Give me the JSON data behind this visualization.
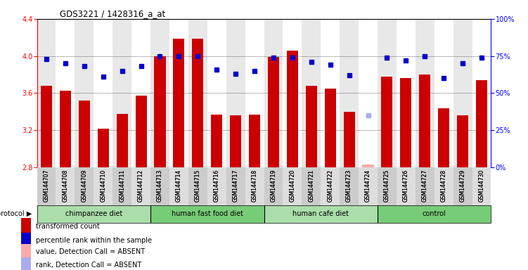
{
  "title": "GDS3221 / 1428316_a_at",
  "samples": [
    "GSM144707",
    "GSM144708",
    "GSM144709",
    "GSM144710",
    "GSM144711",
    "GSM144712",
    "GSM144713",
    "GSM144714",
    "GSM144715",
    "GSM144716",
    "GSM144717",
    "GSM144718",
    "GSM144719",
    "GSM144720",
    "GSM144721",
    "GSM144722",
    "GSM144723",
    "GSM144724",
    "GSM144725",
    "GSM144726",
    "GSM144727",
    "GSM144728",
    "GSM144729",
    "GSM144730"
  ],
  "bar_values": [
    3.68,
    3.63,
    3.52,
    3.22,
    3.38,
    3.57,
    4.0,
    4.19,
    4.19,
    3.37,
    3.36,
    3.37,
    3.99,
    4.06,
    3.68,
    3.65,
    3.4,
    2.83,
    3.78,
    3.76,
    3.8,
    3.44,
    3.36,
    3.74
  ],
  "rank_values": [
    73,
    70,
    68,
    61,
    65,
    68,
    75,
    75,
    75,
    66,
    63,
    65,
    74,
    74,
    71,
    69,
    62,
    35,
    74,
    72,
    75,
    60,
    70,
    74
  ],
  "absent_bar_idx": 17,
  "absent_rank_idx": 17,
  "ylim_left": [
    2.8,
    4.4
  ],
  "ylim_right": [
    0,
    100
  ],
  "yticks_left": [
    2.8,
    3.2,
    3.6,
    4.0,
    4.4
  ],
  "yticks_right": [
    0,
    25,
    50,
    75,
    100
  ],
  "bar_color": "#cc0000",
  "rank_color": "#0000cc",
  "absent_bar_color": "#ffaaaa",
  "absent_rank_color": "#aaaaee",
  "groups": [
    {
      "label": "chimpanzee diet",
      "start": 0,
      "end": 5,
      "color": "#aaddaa"
    },
    {
      "label": "human fast food diet",
      "start": 6,
      "end": 11,
      "color": "#66dd66"
    },
    {
      "label": "human cafe diet",
      "start": 12,
      "end": 17,
      "color": "#aaddaa"
    },
    {
      "label": "control",
      "start": 18,
      "end": 23,
      "color": "#66dd66"
    }
  ],
  "legend_items": [
    {
      "label": "transformed count",
      "color": "#cc0000"
    },
    {
      "label": "percentile rank within the sample",
      "color": "#0000cc"
    },
    {
      "label": "value, Detection Call = ABSENT",
      "color": "#ffaaaa"
    },
    {
      "label": "rank, Detection Call = ABSENT",
      "color": "#aaaaee"
    }
  ]
}
